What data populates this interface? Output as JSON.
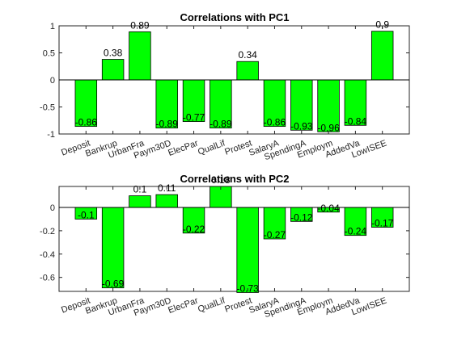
{
  "chart_data": [
    {
      "type": "bar",
      "title": "Correlations  with PC1",
      "xlabel": "",
      "ylabel": "",
      "categories": [
        "Deposit",
        "Bankrup",
        "UrbanFra",
        "Paym30D",
        "ElecPar",
        "QualLif",
        "Protest",
        "SalaryA",
        "SpendingA",
        "Employm",
        "AddedVa",
        "LowISEE"
      ],
      "values": [
        -0.86,
        0.38,
        0.89,
        -0.89,
        -0.77,
        -0.89,
        0.34,
        -0.86,
        -0.93,
        -0.96,
        -0.84,
        0.9
      ],
      "value_labels": [
        "-0.86",
        "0.38",
        "0.89",
        "-0.89",
        "-0.77",
        "-0.89",
        "0.34",
        "-0.86",
        "-0.93",
        "-0.96",
        "-0.84",
        "0,9"
      ],
      "ylim": [
        -1,
        1
      ],
      "yticks": [
        -1,
        -0.5,
        0,
        0.5,
        1
      ],
      "ytick_labels": [
        "-1",
        "-0.5",
        "0",
        "0.5",
        "1"
      ],
      "grid": false,
      "bar_color": "#00ff00"
    },
    {
      "type": "bar",
      "title": "Correlations  with PC2",
      "xlabel": "",
      "ylabel": "",
      "categories": [
        "Deposit",
        "Bankrup",
        "UrbanFra",
        "Paym30D",
        "ElecPar",
        "QualLif",
        "Protest",
        "SalaryA",
        "SpendingA",
        "Employm",
        "AddedVa",
        "LowISEE"
      ],
      "values": [
        -0.1,
        -0.69,
        0.1,
        0.11,
        -0.22,
        0.18,
        -0.73,
        -0.27,
        -0.12,
        -0.04,
        -0.24,
        -0.17
      ],
      "value_labels": [
        "-0.1",
        "-0.69",
        "0.1",
        "0.11",
        "-0.22",
        "0.18",
        "-0.73",
        "-0.27",
        "-0.12",
        "-0.04",
        "-0.24",
        "-0.17"
      ],
      "ylim": [
        -0.72,
        0.18
      ],
      "yticks": [
        -0.6,
        -0.4,
        -0.2,
        0
      ],
      "ytick_labels": [
        "-0.6",
        "-0.4",
        "-0.2",
        "0"
      ],
      "grid": false,
      "bar_color": "#00ff00"
    }
  ]
}
